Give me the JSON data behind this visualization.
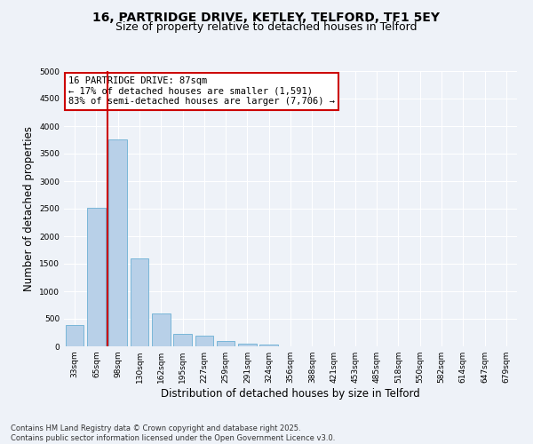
{
  "title_line1": "16, PARTRIDGE DRIVE, KETLEY, TELFORD, TF1 5EY",
  "title_line2": "Size of property relative to detached houses in Telford",
  "xlabel": "Distribution of detached houses by size in Telford",
  "ylabel": "Number of detached properties",
  "categories": [
    "33sqm",
    "65sqm",
    "98sqm",
    "130sqm",
    "162sqm",
    "195sqm",
    "227sqm",
    "259sqm",
    "291sqm",
    "324sqm",
    "356sqm",
    "388sqm",
    "421sqm",
    "453sqm",
    "485sqm",
    "518sqm",
    "550sqm",
    "582sqm",
    "614sqm",
    "647sqm",
    "679sqm"
  ],
  "values": [
    390,
    2520,
    3760,
    1600,
    600,
    230,
    200,
    100,
    50,
    30,
    5,
    3,
    2,
    1,
    1,
    0,
    0,
    0,
    0,
    0,
    0
  ],
  "bar_color": "#b8d0e8",
  "bar_edge_color": "#6aafd4",
  "vline_x": 1.5,
  "vline_color": "#cc0000",
  "annotation_text": "16 PARTRIDGE DRIVE: 87sqm\n← 17% of detached houses are smaller (1,591)\n83% of semi-detached houses are larger (7,706) →",
  "annotation_box_color": "#cc0000",
  "ylim": [
    0,
    5000
  ],
  "yticks": [
    0,
    500,
    1000,
    1500,
    2000,
    2500,
    3000,
    3500,
    4000,
    4500,
    5000
  ],
  "background_color": "#eef2f8",
  "grid_color": "#ffffff",
  "footnote": "Contains HM Land Registry data © Crown copyright and database right 2025.\nContains public sector information licensed under the Open Government Licence v3.0.",
  "title_fontsize": 10,
  "subtitle_fontsize": 9,
  "tick_fontsize": 6.5,
  "label_fontsize": 8.5,
  "ann_fontsize": 7.5
}
